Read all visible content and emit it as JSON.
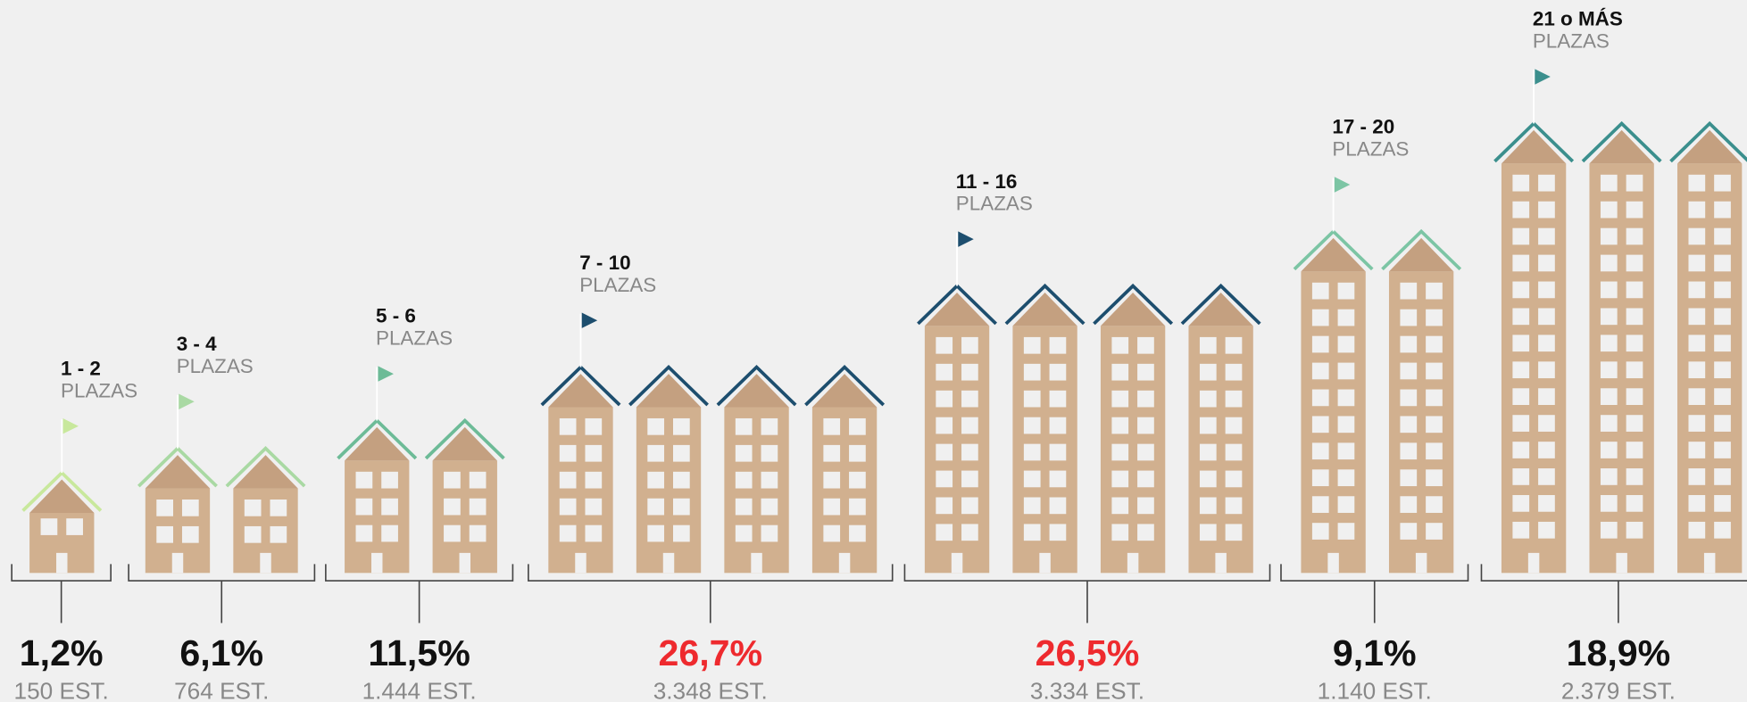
{
  "groups": [
    {
      "range": "1 - 2",
      "unit": "PLAZAS",
      "percent": "1,2%",
      "count": "150 EST.",
      "color": "#c8e89c",
      "value_color": "#111111"
    },
    {
      "range": "3 - 4",
      "unit": "PLAZAS",
      "percent": "6,1%",
      "count": "764 EST.",
      "color": "#a9d9a3",
      "value_color": "#111111"
    },
    {
      "range": "5 - 6",
      "unit": "PLAZAS",
      "percent": "11,5%",
      "count": "1.444 EST.",
      "color": "#6dbb97",
      "value_color": "#111111"
    },
    {
      "range": "7 - 10",
      "unit": "PLAZAS",
      "percent": "26,7%",
      "count": "3.348 EST.",
      "color": "#1d4e6e",
      "value_color": "#ee2a2e"
    },
    {
      "range": "11 - 16",
      "unit": "PLAZAS",
      "percent": "26,5%",
      "count": "3.334 EST.",
      "color": "#1d4e6e",
      "value_color": "#ee2a2e"
    },
    {
      "range": "17 - 20",
      "unit": "PLAZAS",
      "percent": "9,1%",
      "count": "1.140 EST.",
      "color": "#7cc5a4",
      "value_color": "#111111"
    },
    {
      "range": "21 o MÁS",
      "unit": "PLAZAS",
      "percent": "18,9%",
      "count": "2.379 EST.",
      "color": "#3b8f8d",
      "value_color": "#111111"
    }
  ]
}
